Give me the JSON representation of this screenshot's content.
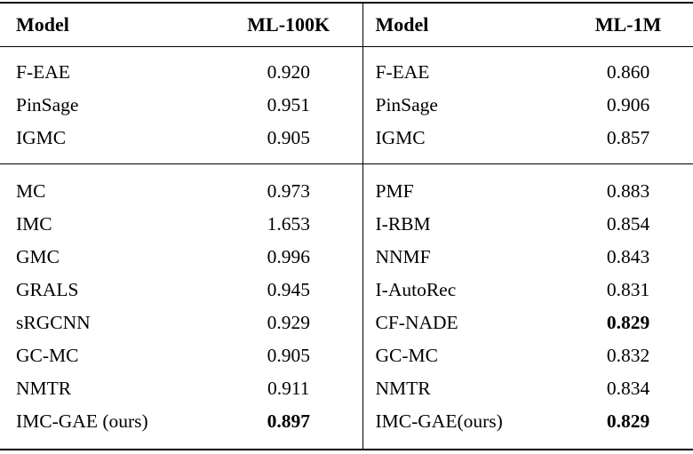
{
  "colors": {
    "background": "#ffffff",
    "text": "#000000",
    "rule": "#000000"
  },
  "table": {
    "header": {
      "left": {
        "model": "Model",
        "dataset": "ML-100K"
      },
      "right": {
        "model": "Model",
        "dataset": "ML-1M"
      }
    },
    "groups": [
      {
        "rows": [
          {
            "left": {
              "model": "F-EAE",
              "value": "0.920",
              "bold": false
            },
            "right": {
              "model": "F-EAE",
              "value": "0.860",
              "bold": false
            }
          },
          {
            "left": {
              "model": "PinSage",
              "value": "0.951",
              "bold": false
            },
            "right": {
              "model": "PinSage",
              "value": "0.906",
              "bold": false
            }
          },
          {
            "left": {
              "model": "IGMC",
              "value": "0.905",
              "bold": false
            },
            "right": {
              "model": "IGMC",
              "value": "0.857",
              "bold": false
            }
          }
        ]
      },
      {
        "rows": [
          {
            "left": {
              "model": "MC",
              "value": "0.973",
              "bold": false
            },
            "right": {
              "model": "PMF",
              "value": "0.883",
              "bold": false
            }
          },
          {
            "left": {
              "model": "IMC",
              "value": "1.653",
              "bold": false
            },
            "right": {
              "model": "I-RBM",
              "value": "0.854",
              "bold": false
            }
          },
          {
            "left": {
              "model": "GMC",
              "value": "0.996",
              "bold": false
            },
            "right": {
              "model": "NNMF",
              "value": "0.843",
              "bold": false
            }
          },
          {
            "left": {
              "model": "GRALS",
              "value": "0.945",
              "bold": false
            },
            "right": {
              "model": "I-AutoRec",
              "value": "0.831",
              "bold": false
            }
          },
          {
            "left": {
              "model": "sRGCNN",
              "value": "0.929",
              "bold": false
            },
            "right": {
              "model": "CF-NADE",
              "value": "0.829",
              "bold": true
            }
          },
          {
            "left": {
              "model": "GC-MC",
              "value": "0.905",
              "bold": false
            },
            "right": {
              "model": "GC-MC",
              "value": "0.832",
              "bold": false
            }
          },
          {
            "left": {
              "model": "NMTR",
              "value": "0.911",
              "bold": false
            },
            "right": {
              "model": "NMTR",
              "value": "0.834",
              "bold": false
            }
          },
          {
            "left": {
              "model": "IMC-GAE (ours)",
              "value": "0.897",
              "bold": true
            },
            "right": {
              "model": "IMC-GAE(ours)",
              "value": "0.829",
              "bold": true
            }
          }
        ]
      }
    ]
  }
}
